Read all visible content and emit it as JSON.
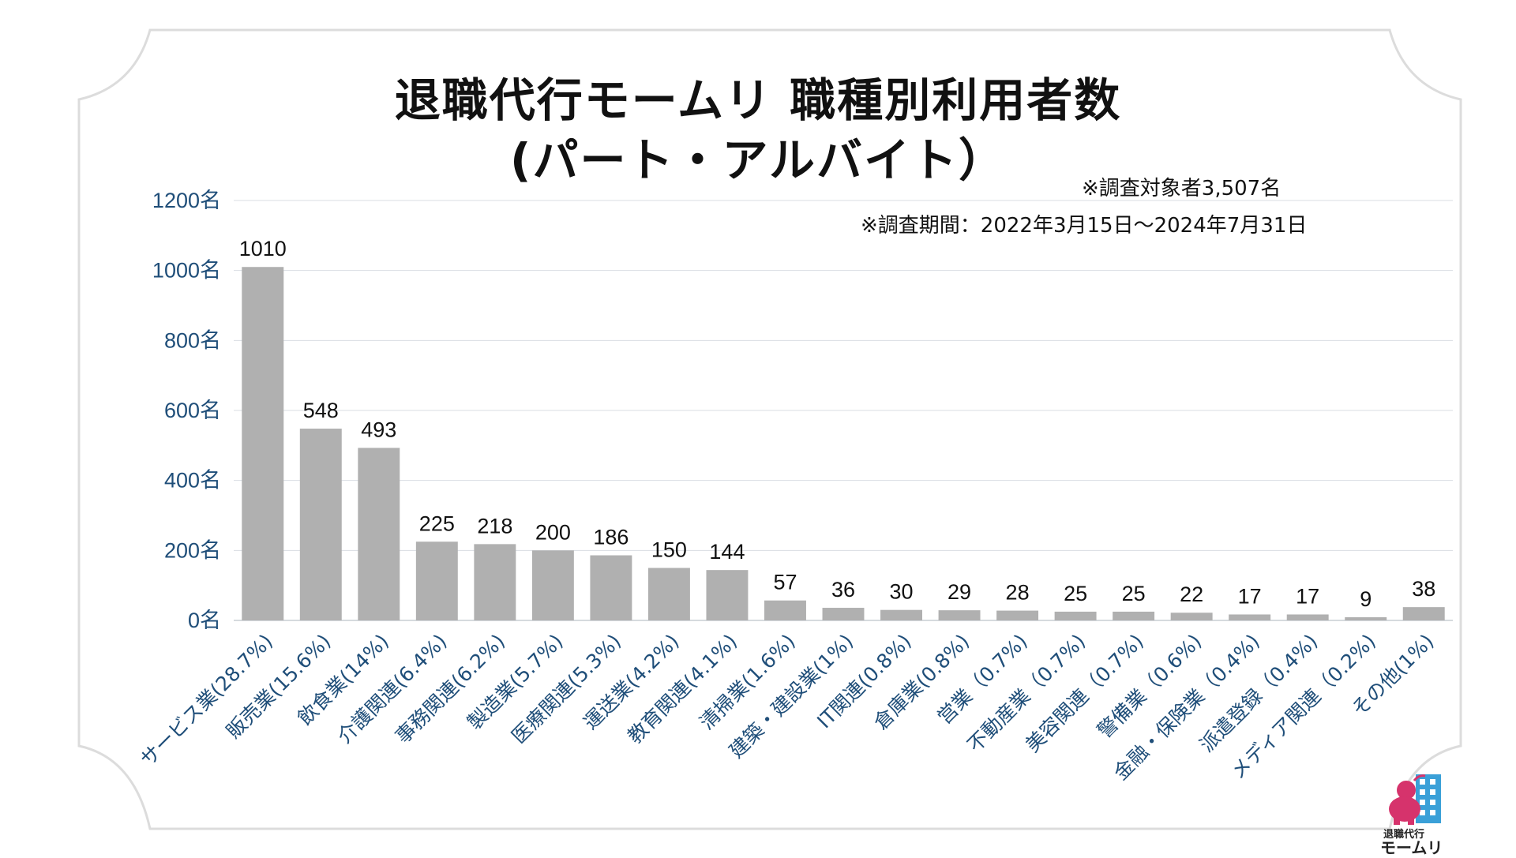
{
  "title_line1": "退職代行モームリ 職種別利用者数",
  "title_line2": "(パート・アルバイト）",
  "note_subjects": "※調査対象者3,507名",
  "note_period": "※調査期間：2022年3月15日〜2024年7月31日",
  "logo": {
    "line1": "退職代行",
    "line2": "モームリ",
    "icon": "mascot-building-logo"
  },
  "colors": {
    "bar": "#b0b0b0",
    "axis_text": "#1f4e79",
    "grid": "#d9dde3",
    "frame": "#dcdcdc"
  },
  "chart_data": {
    "type": "bar",
    "categories": [
      "サービス業(28.7%)",
      "販売業(15.6%)",
      "飲食業(14%)",
      "介護関連(6.4%)",
      "事務関連(6.2%)",
      "製造業(5.7%)",
      "医療関連(5.3%)",
      "運送業(4.2%)",
      "教育関連(4.1%)",
      "清掃業(1.6%)",
      "建築・建設業(1%)",
      "IT関連(0.8%)",
      "倉庫業(0.8%)",
      "営業（0.7%)",
      "不動産業（0.7%)",
      "美容関連（0.7%)",
      "警備業（0.6%)",
      "金融・保険業（0.4%)",
      "派遣登録（0.4%)",
      "メディア関連（0.2%)",
      "その他(1%)"
    ],
    "values": [
      1010,
      548,
      493,
      225,
      218,
      200,
      186,
      150,
      144,
      57,
      36,
      30,
      29,
      28,
      25,
      25,
      22,
      17,
      17,
      9,
      38
    ],
    "y_ticks": [
      "0名",
      "200名",
      "400名",
      "600名",
      "800名",
      "1000名",
      "1200名"
    ],
    "ylim": [
      0,
      1200
    ],
    "grid": true,
    "legend": "none"
  }
}
